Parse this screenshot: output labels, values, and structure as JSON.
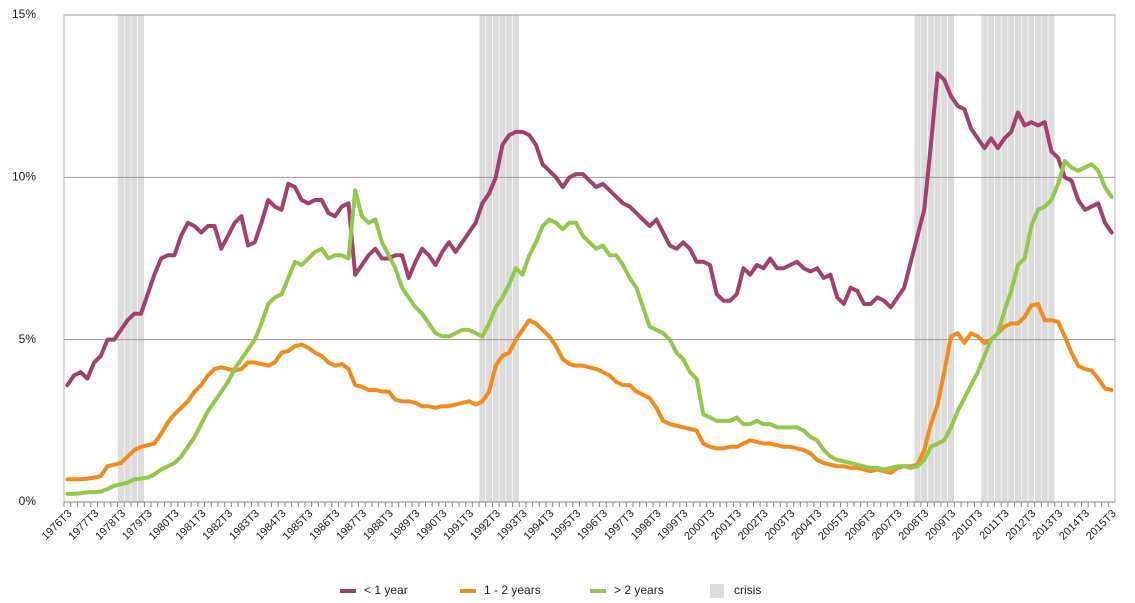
{
  "chart_data": {
    "type": "line",
    "categories": [
      "1976T3",
      null,
      null,
      null,
      "1977T3",
      null,
      null,
      null,
      "1978T3",
      null,
      null,
      null,
      "1979T3",
      null,
      null,
      null,
      "1980T3",
      null,
      null,
      null,
      "1981T3",
      null,
      null,
      null,
      "1982T3",
      null,
      null,
      null,
      "1983T3",
      null,
      null,
      null,
      "1984T3",
      null,
      null,
      null,
      "1985T3",
      null,
      null,
      null,
      "1986T3",
      null,
      null,
      null,
      "1987T3",
      null,
      null,
      null,
      "1988T3",
      null,
      null,
      null,
      "1989T3",
      null,
      null,
      null,
      "1990T3",
      null,
      null,
      null,
      "1991T3",
      null,
      null,
      null,
      "1992T3",
      null,
      null,
      null,
      "1993T3",
      null,
      null,
      null,
      "1994T3",
      null,
      null,
      null,
      "1995T3",
      null,
      null,
      null,
      "1996T3",
      null,
      null,
      null,
      "1997T3",
      null,
      null,
      null,
      "1998T3",
      null,
      null,
      null,
      "1999T3",
      null,
      null,
      null,
      "2000T3",
      null,
      null,
      null,
      "2001T3",
      null,
      null,
      null,
      "2002T3",
      null,
      null,
      null,
      "2003T3",
      null,
      null,
      null,
      "2004T3",
      null,
      null,
      null,
      "2005T3",
      null,
      null,
      null,
      "2006T3",
      null,
      null,
      null,
      "2007T3",
      null,
      null,
      null,
      "2008T3",
      null,
      null,
      null,
      "2009T3",
      null,
      null,
      null,
      "2010T3",
      null,
      null,
      null,
      "2011T3",
      null,
      null,
      null,
      "2012T3",
      null,
      null,
      null,
      "2013T3",
      null,
      null,
      null,
      "2014T3",
      null,
      null,
      null,
      "2015T3"
    ],
    "series": [
      {
        "name": "< 1 year",
        "color": "#a2406e",
        "values": [
          3.6,
          3.9,
          4.0,
          3.8,
          4.3,
          4.5,
          5.0,
          5.0,
          5.3,
          5.6,
          5.8,
          5.8,
          6.4,
          7.0,
          7.5,
          7.6,
          7.6,
          8.2,
          8.6,
          8.5,
          8.3,
          8.5,
          8.5,
          7.8,
          8.2,
          8.6,
          8.8,
          7.9,
          8.0,
          8.6,
          9.3,
          9.1,
          9.0,
          9.8,
          9.7,
          9.3,
          9.2,
          9.3,
          9.3,
          8.9,
          8.8,
          9.1,
          9.2,
          7.0,
          7.3,
          7.6,
          7.8,
          7.5,
          7.5,
          7.6,
          7.6,
          6.9,
          7.4,
          7.8,
          7.6,
          7.3,
          7.7,
          8.0,
          7.7,
          8.0,
          8.3,
          8.6,
          9.2,
          9.5,
          10.0,
          11.0,
          11.3,
          11.4,
          11.4,
          11.3,
          11.0,
          10.4,
          10.2,
          10.0,
          9.7,
          10.0,
          10.1,
          10.1,
          9.9,
          9.7,
          9.8,
          9.6,
          9.4,
          9.2,
          9.1,
          8.9,
          8.7,
          8.5,
          8.7,
          8.3,
          7.9,
          7.8,
          8.0,
          7.8,
          7.4,
          7.4,
          7.3,
          6.4,
          6.2,
          6.2,
          6.4,
          7.2,
          7.0,
          7.3,
          7.2,
          7.5,
          7.2,
          7.2,
          7.3,
          7.4,
          7.2,
          7.1,
          7.2,
          6.9,
          7.0,
          6.3,
          6.1,
          6.6,
          6.5,
          6.1,
          6.1,
          6.3,
          6.2,
          6.0,
          6.3,
          6.6,
          7.4,
          8.2,
          9.0,
          11.0,
          13.2,
          13.0,
          12.5,
          12.2,
          12.1,
          11.5,
          11.2,
          10.9,
          11.2,
          10.9,
          11.2,
          11.4,
          12.0,
          11.6,
          11.7,
          11.6,
          11.7,
          10.8,
          10.6,
          10.0,
          9.9,
          9.3,
          9.0,
          9.1,
          9.2,
          8.6,
          8.3
        ]
      },
      {
        "name": "1 - 2 years",
        "color": "#f28a1c",
        "values": [
          0.7,
          0.7,
          0.7,
          0.72,
          0.75,
          0.8,
          1.1,
          1.15,
          1.2,
          1.4,
          1.6,
          1.7,
          1.75,
          1.8,
          2.1,
          2.45,
          2.7,
          2.9,
          3.1,
          3.4,
          3.6,
          3.9,
          4.1,
          4.15,
          4.1,
          4.05,
          4.1,
          4.3,
          4.3,
          4.25,
          4.2,
          4.3,
          4.6,
          4.65,
          4.8,
          4.85,
          4.75,
          4.6,
          4.5,
          4.3,
          4.2,
          4.25,
          4.1,
          3.6,
          3.55,
          3.45,
          3.45,
          3.4,
          3.4,
          3.15,
          3.1,
          3.1,
          3.05,
          2.95,
          2.95,
          2.9,
          2.95,
          2.95,
          3.0,
          3.05,
          3.1,
          3.0,
          3.1,
          3.4,
          4.2,
          4.5,
          4.6,
          5.0,
          5.3,
          5.6,
          5.5,
          5.3,
          5.1,
          4.8,
          4.4,
          4.25,
          4.2,
          4.2,
          4.15,
          4.1,
          4.0,
          3.9,
          3.7,
          3.6,
          3.6,
          3.4,
          3.3,
          3.2,
          2.9,
          2.5,
          2.4,
          2.35,
          2.3,
          2.25,
          2.2,
          1.8,
          1.7,
          1.65,
          1.65,
          1.7,
          1.7,
          1.8,
          1.9,
          1.85,
          1.8,
          1.8,
          1.75,
          1.7,
          1.7,
          1.65,
          1.6,
          1.5,
          1.3,
          1.2,
          1.15,
          1.1,
          1.1,
          1.05,
          1.05,
          1.0,
          0.95,
          1.0,
          0.95,
          0.9,
          1.05,
          1.1,
          1.1,
          1.15,
          1.6,
          2.4,
          3.0,
          4.0,
          5.1,
          5.2,
          4.9,
          5.2,
          5.1,
          4.9,
          5.0,
          5.2,
          5.4,
          5.5,
          5.5,
          5.7,
          6.05,
          6.1,
          5.6,
          5.6,
          5.55,
          5.1,
          4.6,
          4.2,
          4.1,
          4.05,
          3.8,
          3.5,
          3.45
        ]
      },
      {
        "name": "> 2 years",
        "color": "#92c94a",
        "values": [
          0.25,
          0.25,
          0.27,
          0.3,
          0.3,
          0.32,
          0.4,
          0.5,
          0.55,
          0.6,
          0.7,
          0.72,
          0.75,
          0.85,
          1.0,
          1.1,
          1.2,
          1.4,
          1.7,
          2.0,
          2.4,
          2.8,
          3.1,
          3.4,
          3.7,
          4.1,
          4.4,
          4.7,
          5.0,
          5.5,
          6.1,
          6.3,
          6.4,
          6.9,
          7.4,
          7.3,
          7.5,
          7.7,
          7.8,
          7.5,
          7.6,
          7.6,
          7.5,
          9.6,
          8.8,
          8.6,
          8.7,
          8.0,
          7.6,
          7.2,
          6.6,
          6.3,
          6.0,
          5.8,
          5.5,
          5.2,
          5.1,
          5.1,
          5.2,
          5.3,
          5.3,
          5.2,
          5.1,
          5.5,
          6.0,
          6.3,
          6.7,
          7.2,
          7.0,
          7.6,
          8.0,
          8.5,
          8.7,
          8.6,
          8.4,
          8.6,
          8.6,
          8.2,
          8.0,
          7.8,
          7.9,
          7.6,
          7.6,
          7.3,
          6.9,
          6.6,
          6.0,
          5.4,
          5.3,
          5.2,
          5.0,
          4.6,
          4.4,
          4.0,
          3.8,
          2.7,
          2.6,
          2.5,
          2.5,
          2.5,
          2.6,
          2.4,
          2.4,
          2.5,
          2.4,
          2.4,
          2.3,
          2.3,
          2.3,
          2.3,
          2.2,
          2.0,
          1.9,
          1.6,
          1.4,
          1.3,
          1.25,
          1.2,
          1.15,
          1.1,
          1.05,
          1.05,
          1.0,
          1.05,
          1.1,
          1.1,
          1.05,
          1.1,
          1.3,
          1.7,
          1.8,
          1.9,
          2.3,
          2.8,
          3.2,
          3.6,
          4.0,
          4.5,
          5.0,
          5.2,
          5.9,
          6.5,
          7.3,
          7.5,
          8.5,
          9.0,
          9.1,
          9.3,
          9.8,
          10.5,
          10.3,
          10.2,
          10.3,
          10.4,
          10.2,
          9.7,
          9.4
        ]
      },
      {
        "name": "crisis",
        "type": "bar",
        "color": "#dcdcdc",
        "values": [
          null,
          null,
          null,
          null,
          null,
          null,
          null,
          null,
          15,
          15,
          15,
          15,
          null,
          null,
          null,
          null,
          null,
          null,
          null,
          null,
          null,
          null,
          null,
          null,
          null,
          null,
          null,
          null,
          null,
          null,
          null,
          null,
          null,
          null,
          null,
          null,
          null,
          null,
          null,
          null,
          null,
          null,
          null,
          null,
          null,
          null,
          null,
          null,
          null,
          null,
          null,
          null,
          null,
          null,
          null,
          null,
          null,
          null,
          null,
          null,
          null,
          null,
          15,
          15,
          15,
          15,
          15,
          15,
          null,
          null,
          null,
          null,
          null,
          null,
          null,
          null,
          null,
          null,
          null,
          null,
          null,
          null,
          null,
          null,
          null,
          null,
          null,
          null,
          null,
          null,
          null,
          null,
          null,
          null,
          null,
          null,
          null,
          null,
          null,
          null,
          null,
          null,
          null,
          null,
          null,
          null,
          null,
          null,
          null,
          null,
          null,
          null,
          null,
          null,
          null,
          null,
          null,
          null,
          null,
          null,
          null,
          null,
          null,
          null,
          null,
          null,
          null,
          15,
          15,
          15,
          15,
          15,
          15,
          null,
          null,
          null,
          null,
          15,
          15,
          15,
          15,
          15,
          15,
          15,
          15,
          15,
          15,
          15,
          null,
          null,
          null,
          null,
          null,
          null,
          null,
          null,
          null
        ]
      }
    ],
    "ylim": [
      0,
      15
    ],
    "yticks": [
      {
        "value": 0,
        "label": "0%"
      },
      {
        "value": 5,
        "label": "5%"
      },
      {
        "value": 10,
        "label": "10%"
      },
      {
        "value": 15,
        "label": "15%"
      }
    ],
    "grid": true,
    "legend": "bottom"
  }
}
